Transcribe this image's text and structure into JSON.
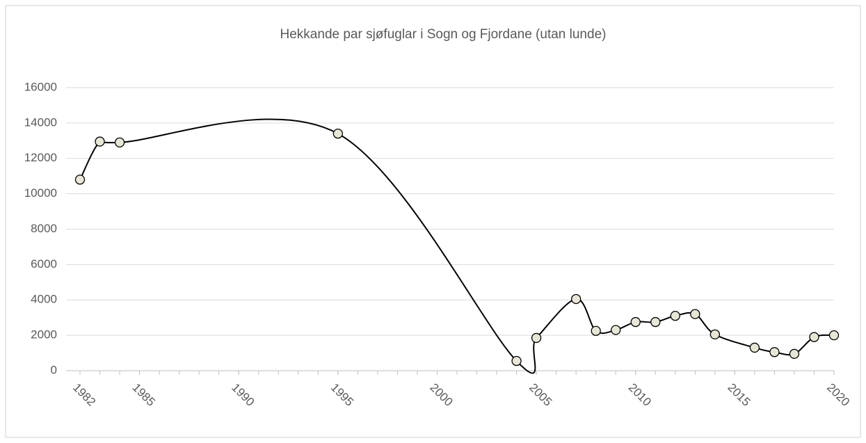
{
  "chart_data": {
    "type": "line",
    "title": "Hekkande par sjøfuglar i Sogn og Fjordane (utan lunde)",
    "x": [
      1982,
      1983,
      1984,
      1995,
      2004,
      2005,
      2007,
      2008,
      2009,
      2010,
      2011,
      2012,
      2013,
      2014,
      2016,
      2017,
      2018,
      2019,
      2020
    ],
    "series": [
      {
        "name": "Hekkande par",
        "color": "#000000",
        "marker_fill": "#e8e6d6",
        "values": [
          10800,
          12950,
          12900,
          13400,
          550,
          1850,
          4050,
          2250,
          2300,
          2750,
          2750,
          3100,
          3200,
          2050,
          1300,
          1050,
          950,
          1900,
          2000
        ]
      }
    ],
    "xlim": [
      1982,
      2020
    ],
    "xticks": [
      1982,
      1985,
      1990,
      1995,
      2000,
      2005,
      2010,
      2015,
      2020
    ],
    "ylim": [
      0,
      16000
    ],
    "yticks": [
      0,
      2000,
      4000,
      6000,
      8000,
      10000,
      12000,
      14000,
      16000
    ],
    "grid": true,
    "smooth": true
  }
}
